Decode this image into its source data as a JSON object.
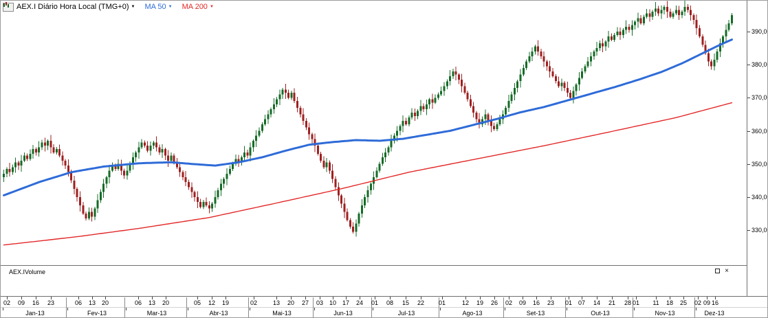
{
  "header": {
    "title": "AEX.I Diário Hora Local (TMG+0)",
    "dropdown_icon": "▼",
    "ma50_label": "MA 50",
    "ma200_label": "MA 200"
  },
  "volume_pane": {
    "title": "AEX.IVolume",
    "close_icon": "×"
  },
  "chart_data": {
    "type": "candlestick",
    "title": "AEX.I Diário Hora Local (TMG+0)",
    "timeframe": "Diário",
    "legend": [
      "MA 50",
      "MA 200"
    ],
    "colors": {
      "up": "#156b27",
      "down": "#9e2020",
      "ma50": "#2e6bd8",
      "ma200": "#e32727"
    },
    "y_axis": {
      "labels": [
        "390,00",
        "380,00",
        "370,00",
        "360,00",
        "350,00",
        "340,00",
        "330,00"
      ],
      "values": [
        390,
        380,
        370,
        360,
        350,
        340,
        330
      ],
      "visible_range": [
        319,
        399
      ]
    },
    "x_axis": {
      "months": [
        {
          "label": "Jan-13",
          "days": [
            "02",
            "09",
            "16",
            "23"
          ],
          "candles": 22
        },
        {
          "label": "Fev-13",
          "days": [
            "06",
            "13",
            "20"
          ],
          "candles": 20
        },
        {
          "label": "Mar-13",
          "days": [
            "06",
            "13",
            "20"
          ],
          "candles": 21
        },
        {
          "label": "Abr-13",
          "days": [
            "05",
            "12",
            "19"
          ],
          "candles": 21
        },
        {
          "label": "Mai-13",
          "days": [
            "02",
            "13",
            "20",
            "27"
          ],
          "candles": 22
        },
        {
          "label": "Jun-13",
          "days": [
            "03",
            "10",
            "17",
            "24"
          ],
          "candles": 20
        },
        {
          "label": "Jul-13",
          "days": [
            "01",
            "08",
            "15",
            "22"
          ],
          "candles": 23
        },
        {
          "label": "Ago-13",
          "days": [
            "01",
            "12",
            "19",
            "26"
          ],
          "candles": 22
        },
        {
          "label": "Set-13",
          "days": [
            "02",
            "09",
            "16",
            "23"
          ],
          "candles": 21
        },
        {
          "label": "Out-13",
          "days": [
            "01",
            "07",
            "14",
            "21",
            "28"
          ],
          "candles": 23
        },
        {
          "label": "Nov-13",
          "days": [
            "01",
            "11",
            "18",
            "25"
          ],
          "candles": 21
        },
        {
          "label": "Dez-13",
          "days": [
            "02",
            "09",
            "16"
          ],
          "candles": 13
        }
      ]
    },
    "series": {
      "first_open": 346.0,
      "wick_pattern": [
        1.4,
        0.6,
        2.1,
        0.9,
        1.6,
        0.5,
        1.9,
        1.1,
        0.7,
        1.5
      ],
      "closes": [
        347,
        348.5,
        347.5,
        349,
        350.5,
        349.5,
        351,
        352.5,
        351.5,
        353,
        354.5,
        353.5,
        355,
        356.5,
        355.5,
        357,
        355,
        353.5,
        354.5,
        352.5,
        351,
        349.5,
        347.5,
        345,
        342.5,
        340,
        337.5,
        335,
        333.5,
        335.5,
        334,
        336.5,
        339,
        341.5,
        344,
        346,
        348,
        349.5,
        348.5,
        350,
        348,
        346.5,
        348,
        350,
        352,
        353.5,
        355,
        356.5,
        355.5,
        354,
        355.5,
        356.5,
        355,
        353.5,
        354.5,
        352.5,
        351,
        352.5,
        350.5,
        349,
        347.5,
        346,
        344.5,
        343,
        341.5,
        340,
        338.5,
        337,
        338.5,
        337.5,
        336.5,
        338,
        340,
        342,
        344,
        345.5,
        347,
        348.5,
        350,
        351.5,
        350.5,
        352,
        353.5,
        352.5,
        355,
        357,
        358.5,
        360,
        362,
        363.5,
        365,
        366.5,
        368,
        369.5,
        371,
        372.5,
        371.5,
        370,
        371.5,
        369,
        367,
        365,
        363,
        361,
        359,
        357.5,
        355.5,
        353,
        351,
        349,
        350.5,
        348,
        345.5,
        343,
        340.5,
        338,
        335.5,
        333,
        331,
        329.5,
        332,
        335,
        337.5,
        340,
        342,
        344,
        346,
        348,
        350,
        352,
        353.5,
        355,
        357,
        358.5,
        360,
        361.5,
        363,
        362,
        364,
        365.5,
        364.5,
        366,
        367.5,
        366.5,
        368,
        369.5,
        368.5,
        370,
        371,
        372,
        373.5,
        375,
        376.5,
        378,
        377,
        375.5,
        373.5,
        371.5,
        369.5,
        367.5,
        365.5,
        363.5,
        362,
        363.5,
        365,
        363,
        361.5,
        360.5,
        362,
        363.5,
        365,
        367,
        369,
        371,
        373,
        375,
        377,
        379,
        381,
        382.5,
        384,
        385.5,
        384,
        382.5,
        381,
        379.5,
        378,
        376.5,
        375,
        373.5,
        374.5,
        373,
        371.5,
        370,
        372,
        374,
        376,
        378,
        379.5,
        381,
        382.5,
        384,
        385,
        386.5,
        385.5,
        387,
        388.5,
        387.5,
        389,
        390,
        389,
        390.5,
        391.5,
        390.5,
        392,
        393,
        394,
        392.5,
        394.5,
        395.5,
        394.5,
        396,
        397,
        395.5,
        396.5,
        397.5,
        396,
        394.5,
        395.5,
        396.5,
        395,
        396,
        397.5,
        396.5,
        395,
        393.5,
        391,
        388.5,
        386,
        383.5,
        381,
        379.5,
        381.5,
        384,
        386.5,
        388.5,
        390.5,
        392.5,
        395
      ],
      "ma50": {
        "name": "MA 50",
        "anchors": [
          [
            0,
            340.5
          ],
          [
            12,
            344.5
          ],
          [
            23,
            347.5
          ],
          [
            34,
            349.2
          ],
          [
            46,
            350.2
          ],
          [
            57,
            350.5
          ],
          [
            64,
            350
          ],
          [
            72,
            349.5
          ],
          [
            80,
            350.5
          ],
          [
            88,
            352
          ],
          [
            96,
            354
          ],
          [
            104,
            355.8
          ],
          [
            112,
            356.6
          ],
          [
            120,
            357.2
          ],
          [
            128,
            357
          ],
          [
            136,
            357.6
          ],
          [
            144,
            358.8
          ],
          [
            152,
            360
          ],
          [
            160,
            361.8
          ],
          [
            168,
            363.6
          ],
          [
            176,
            365.6
          ],
          [
            184,
            367.2
          ],
          [
            192,
            369.2
          ],
          [
            200,
            371.2
          ],
          [
            208,
            373.2
          ],
          [
            216,
            375.4
          ],
          [
            224,
            377.8
          ],
          [
            231,
            380.4
          ],
          [
            237,
            383
          ],
          [
            243,
            385.6
          ],
          [
            248,
            387.6
          ]
        ]
      },
      "ma200": {
        "name": "MA 200",
        "anchors": [
          [
            0,
            325.5
          ],
          [
            25,
            328
          ],
          [
            46,
            330.5
          ],
          [
            70,
            333.8
          ],
          [
            92,
            338
          ],
          [
            115,
            342.5
          ],
          [
            138,
            347.5
          ],
          [
            161,
            351.5
          ],
          [
            184,
            355.5
          ],
          [
            207,
            359.8
          ],
          [
            229,
            364
          ],
          [
            248,
            368.5
          ]
        ]
      }
    }
  }
}
